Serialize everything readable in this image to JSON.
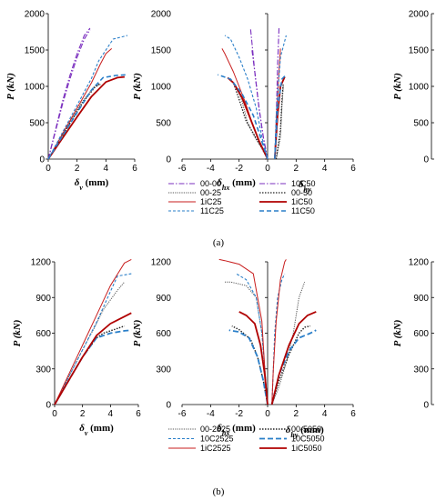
{
  "figure": {
    "panel_labels": [
      "(a)",
      "(b)"
    ]
  },
  "styles": {
    "00-00": {
      "color": "#7b2fbf",
      "dash": "6 2 1.5 2",
      "width": 1.1
    },
    "10C50": {
      "color": "#7b2fbf",
      "dash": "6 2 1.5 2",
      "width": 1.1
    },
    "00-25": {
      "color": "#555555",
      "dash": "1.2 1.2",
      "width": 1.0
    },
    "00-50": {
      "color": "#222222",
      "dash": "1.5 1.5",
      "width": 1.3
    },
    "1iC25": {
      "color": "#c81e1e",
      "dash": "",
      "width": 1.0
    },
    "1iC50": {
      "color": "#b00000",
      "dash": "",
      "width": 1.8
    },
    "11C25": {
      "color": "#2a7fc9",
      "dash": "3 2",
      "width": 1.1
    },
    "11C50": {
      "color": "#2a7fc9",
      "dash": "5 3",
      "width": 1.6
    },
    "00-2525": {
      "color": "#555555",
      "dash": "1.2 1.2",
      "width": 1.0
    },
    "00-5050": {
      "color": "#222222",
      "dash": "1.5 1.5",
      "width": 1.4
    },
    "10C2525": {
      "color": "#2a7fc9",
      "dash": "3 2",
      "width": 1.1
    },
    "10C5050": {
      "color": "#2a7fc9",
      "dash": "6 3",
      "width": 1.8
    },
    "1iC2525": {
      "color": "#c81e1e",
      "dash": "",
      "width": 1.0
    },
    "1iC5050": {
      "color": "#b00000",
      "dash": "",
      "width": 1.8
    }
  },
  "chart_data": [
    {
      "type": "line",
      "panel": "a-left",
      "xlabel": "δv (mm)",
      "xlabel_main": "δ",
      "xlabel_sub": "v",
      "xlabel_unit": " (mm)",
      "ylabel": "P (kN)",
      "xlim": [
        0,
        6
      ],
      "ylim": [
        0,
        2000
      ],
      "xticks": [
        0,
        2,
        4,
        6
      ],
      "yticks": [
        0,
        500,
        1000,
        1500,
        2000
      ],
      "series": [
        {
          "name": "00-00",
          "x": [
            0,
            0.5,
            1.0,
            1.5,
            2.0,
            2.5,
            2.9
          ],
          "y": [
            0,
            400,
            800,
            1150,
            1450,
            1700,
            1800
          ]
        },
        {
          "name": "10C50",
          "x": [
            0,
            0.5,
            1.0,
            1.5,
            2.0,
            2.5,
            2.9
          ],
          "y": [
            0,
            380,
            760,
            1100,
            1400,
            1650,
            1780
          ]
        },
        {
          "name": "00-25",
          "x": [
            0,
            0.8,
            1.6,
            2.4,
            3.2,
            3.7
          ],
          "y": [
            0,
            270,
            540,
            800,
            1000,
            1030
          ]
        },
        {
          "name": "00-50",
          "x": [
            0,
            0.8,
            1.6,
            2.4,
            3.2,
            3.6
          ],
          "y": [
            0,
            260,
            520,
            780,
            980,
            1040
          ]
        },
        {
          "name": "1iC25",
          "x": [
            0,
            1.0,
            2.0,
            3.0,
            3.6,
            4.0,
            4.4
          ],
          "y": [
            0,
            350,
            700,
            1050,
            1300,
            1450,
            1520
          ]
        },
        {
          "name": "1iC50",
          "x": [
            0,
            1.0,
            2.0,
            3.0,
            4.0,
            4.8,
            5.3
          ],
          "y": [
            0,
            290,
            580,
            860,
            1060,
            1120,
            1130
          ]
        },
        {
          "name": "11C25",
          "x": [
            0,
            1.0,
            2.0,
            3.0,
            3.5,
            4.5,
            5.5
          ],
          "y": [
            0,
            370,
            740,
            1110,
            1350,
            1650,
            1700
          ]
        },
        {
          "name": "11C50",
          "x": [
            0,
            1.0,
            2.0,
            3.0,
            3.8,
            4.7,
            5.5
          ],
          "y": [
            0,
            320,
            640,
            950,
            1120,
            1150,
            1160
          ]
        }
      ]
    },
    {
      "type": "line",
      "panel": "a-middle",
      "xlabel": "δhx (mm)",
      "xlabel_main": "δ",
      "xlabel_sub": "hx",
      "xlabel_unit": " (mm)",
      "xlabel2": "δhy",
      "xlabel2_main": "δ",
      "xlabel2_sub": "hy",
      "ylabel": "P (kN)",
      "xlim": [
        -6,
        6
      ],
      "ylim": [
        0,
        2000
      ],
      "xticks": [
        -6,
        -4,
        -2,
        0,
        2,
        4,
        6
      ],
      "yticks": [
        0,
        500,
        1000,
        1500,
        2000
      ],
      "series": [
        {
          "name": "00-00",
          "x": [
            0,
            -0.3,
            -0.6,
            -0.9,
            -1.1,
            -1.2
          ],
          "y": [
            0,
            300,
            700,
            1200,
            1600,
            1800
          ]
        },
        {
          "name": "10C50",
          "x": [
            0,
            -0.3,
            -0.6,
            -0.9,
            -1.1
          ],
          "y": [
            0,
            300,
            700,
            1200,
            1500
          ]
        },
        {
          "name": "00-25",
          "x": [
            0,
            -0.4,
            -0.9,
            -1.4,
            -1.8,
            -2.2
          ],
          "y": [
            0,
            150,
            300,
            500,
            800,
            1000
          ]
        },
        {
          "name": "00-50",
          "x": [
            0,
            -0.4,
            -0.9,
            -1.5,
            -2.0,
            -2.4
          ],
          "y": [
            0,
            150,
            320,
            520,
            820,
            1050
          ]
        },
        {
          "name": "1iC25",
          "x": [
            0,
            -0.5,
            -1.0,
            -1.6,
            -2.4,
            -3.0,
            -3.2
          ],
          "y": [
            0,
            200,
            450,
            800,
            1200,
            1450,
            1520
          ]
        },
        {
          "name": "1iC50",
          "x": [
            0,
            -0.6,
            -1.2,
            -1.8,
            -2.4,
            -2.8
          ],
          "y": [
            0,
            250,
            550,
            850,
            1050,
            1120
          ]
        },
        {
          "name": "11C25",
          "x": [
            0,
            -0.4,
            -0.8,
            -1.4,
            -2.0,
            -2.6,
            -3.0
          ],
          "y": [
            0,
            300,
            700,
            1100,
            1400,
            1650,
            1700
          ]
        },
        {
          "name": "11C50",
          "x": [
            0,
            -0.5,
            -1.0,
            -1.8,
            -2.6,
            -3.5
          ],
          "y": [
            0,
            300,
            600,
            900,
            1100,
            1160
          ]
        },
        {
          "name": "00-00",
          "x": [
            0.5,
            0.6,
            0.7,
            0.8
          ],
          "y": [
            0,
            500,
            1300,
            1800
          ]
        },
        {
          "name": "00-25",
          "x": [
            0.6,
            0.9,
            1.0,
            1.1
          ],
          "y": [
            0,
            300,
            700,
            1000
          ]
        },
        {
          "name": "00-50",
          "x": [
            0.6,
            0.9,
            1.0,
            1.1
          ],
          "y": [
            0,
            400,
            800,
            1040
          ]
        },
        {
          "name": "1iC25",
          "x": [
            0.5,
            0.6,
            0.8,
            0.9
          ],
          "y": [
            0,
            500,
            1200,
            1520
          ]
        },
        {
          "name": "1iC50",
          "x": [
            0.5,
            0.7,
            0.9,
            1.2
          ],
          "y": [
            0,
            600,
            1000,
            1130
          ]
        },
        {
          "name": "11C25",
          "x": [
            0.5,
            0.6,
            0.9,
            1.3
          ],
          "y": [
            0,
            600,
            1400,
            1700
          ]
        },
        {
          "name": "11C50",
          "x": [
            0.5,
            0.7,
            1.0,
            1.3
          ],
          "y": [
            0,
            700,
            1100,
            1160
          ]
        }
      ]
    },
    {
      "type": "line",
      "panel": "b-left",
      "xlabel": "δv (mm)",
      "xlabel_main": "δ",
      "xlabel_sub": "v",
      "xlabel_unit": " (mm)",
      "ylabel": "P (kN)",
      "xlim": [
        0,
        6
      ],
      "ylim": [
        0,
        1200
      ],
      "xticks": [
        0,
        2,
        4,
        6
      ],
      "yticks": [
        0,
        300,
        600,
        900,
        1200
      ],
      "series": [
        {
          "name": "00-2525",
          "x": [
            0,
            1.0,
            2.0,
            3.0,
            3.5,
            4.5,
            5.0
          ],
          "y": [
            0,
            230,
            460,
            680,
            800,
            960,
            1030
          ]
        },
        {
          "name": "00-5050",
          "x": [
            0,
            1.0,
            2.0,
            3.0,
            3.5,
            4.5,
            5.0
          ],
          "y": [
            0,
            200,
            400,
            560,
            600,
            640,
            660
          ]
        },
        {
          "name": "10C2525",
          "x": [
            0,
            1.0,
            2.0,
            3.0,
            4.0,
            4.5,
            5.5
          ],
          "y": [
            0,
            230,
            460,
            690,
            950,
            1080,
            1100
          ]
        },
        {
          "name": "10C5050",
          "x": [
            0,
            1.0,
            2.0,
            3.0,
            4.0,
            5.0,
            5.5
          ],
          "y": [
            0,
            200,
            400,
            560,
            600,
            620,
            625
          ]
        },
        {
          "name": "1iC2525",
          "x": [
            0,
            1.0,
            2.0,
            3.0,
            4.0,
            5.0,
            5.5
          ],
          "y": [
            0,
            250,
            500,
            750,
            1000,
            1190,
            1220
          ]
        },
        {
          "name": "1iC5050",
          "x": [
            0,
            1.0,
            2.0,
            3.0,
            4.0,
            5.0,
            5.5
          ],
          "y": [
            0,
            200,
            400,
            580,
            680,
            740,
            770
          ]
        }
      ]
    },
    {
      "type": "line",
      "panel": "b-middle",
      "xlabel": "δhx (mm)",
      "xlabel_main": "δ",
      "xlabel_sub": "hx",
      "xlabel_unit": " (mm)",
      "xlabel2": "δhy (mm)",
      "xlabel2_main": "δ",
      "xlabel2_sub": "hy",
      "xlabel2_unit": " (mm)",
      "ylabel": "P (kN)",
      "xlim": [
        -6,
        6
      ],
      "ylim": [
        0,
        1200
      ],
      "xticks": [
        -6,
        -4,
        -2,
        0,
        2,
        4,
        6
      ],
      "yticks": [
        0,
        300,
        600,
        900,
        1200
      ],
      "series": [
        {
          "name": "00-2525",
          "x": [
            0,
            -0.2,
            -0.4,
            -0.8,
            -1.5,
            -2.6,
            -3.0
          ],
          "y": [
            0,
            300,
            600,
            900,
            1000,
            1030,
            1030
          ]
        },
        {
          "name": "00-5050",
          "x": [
            0,
            -0.3,
            -0.7,
            -1.2,
            -2.0,
            -2.5
          ],
          "y": [
            0,
            200,
            400,
            550,
            630,
            660
          ]
        },
        {
          "name": "10C2525",
          "x": [
            0,
            -0.2,
            -0.4,
            -0.8,
            -1.5,
            -2.2
          ],
          "y": [
            0,
            300,
            600,
            900,
            1050,
            1100
          ]
        },
        {
          "name": "10C5050",
          "x": [
            0,
            -0.3,
            -0.7,
            -1.3,
            -2.0,
            -2.7
          ],
          "y": [
            0,
            200,
            400,
            560,
            610,
            625
          ]
        },
        {
          "name": "1iC2525",
          "x": [
            0,
            -0.2,
            -0.4,
            -1.0,
            -2.0,
            -3.0,
            -3.4
          ],
          "y": [
            0,
            300,
            700,
            1100,
            1180,
            1210,
            1220
          ]
        },
        {
          "name": "1iC5050",
          "x": [
            0,
            -0.2,
            -0.5,
            -0.9,
            -1.5,
            -2.0
          ],
          "y": [
            0,
            250,
            500,
            680,
            750,
            780
          ]
        },
        {
          "name": "00-2525",
          "x": [
            0.3,
            0.8,
            1.3,
            1.8,
            2.2,
            2.6
          ],
          "y": [
            0,
            150,
            350,
            600,
            900,
            1030
          ]
        },
        {
          "name": "00-5050",
          "x": [
            0.3,
            0.8,
            1.5,
            2.2,
            2.6,
            3.0
          ],
          "y": [
            0,
            200,
            420,
            600,
            650,
            660
          ]
        },
        {
          "name": "10C2525",
          "x": [
            0.3,
            0.4,
            0.5,
            0.7,
            1.0,
            1.2
          ],
          "y": [
            0,
            300,
            600,
            900,
            1050,
            1100
          ]
        },
        {
          "name": "10C5050",
          "x": [
            0.3,
            0.8,
            1.5,
            2.2,
            3.0,
            3.4
          ],
          "y": [
            0,
            250,
            450,
            560,
            600,
            625
          ]
        },
        {
          "name": "1iC2525",
          "x": [
            0.3,
            0.4,
            0.6,
            0.9,
            1.2,
            1.3
          ],
          "y": [
            0,
            300,
            700,
            1050,
            1200,
            1220
          ]
        },
        {
          "name": "1iC5050",
          "x": [
            0.3,
            0.8,
            1.5,
            2.2,
            2.8,
            3.4
          ],
          "y": [
            0,
            250,
            500,
            680,
            750,
            780
          ]
        }
      ]
    },
    {
      "type": "line",
      "panel": "a-right-axis",
      "ylabel": "P (kN)",
      "ylim": [
        0,
        2000
      ],
      "yticks": [
        0,
        500,
        1000,
        1500,
        2000
      ],
      "series": []
    },
    {
      "type": "line",
      "panel": "b-right-axis",
      "ylabel": "P (kN)",
      "ylim": [
        0,
        1200
      ],
      "yticks": [
        0,
        300,
        600,
        900,
        1200
      ],
      "series": []
    }
  ],
  "legends": [
    {
      "panel": "a",
      "entries": [
        "00-00",
        "10C50",
        "00-25",
        "00-50",
        "1iC25",
        "1iC50",
        "11C25",
        "11C50"
      ]
    },
    {
      "panel": "b",
      "entries": [
        "00-2525",
        "00-5050",
        "10C2525",
        "10C5050",
        "1iC2525",
        "1iC5050"
      ]
    }
  ]
}
